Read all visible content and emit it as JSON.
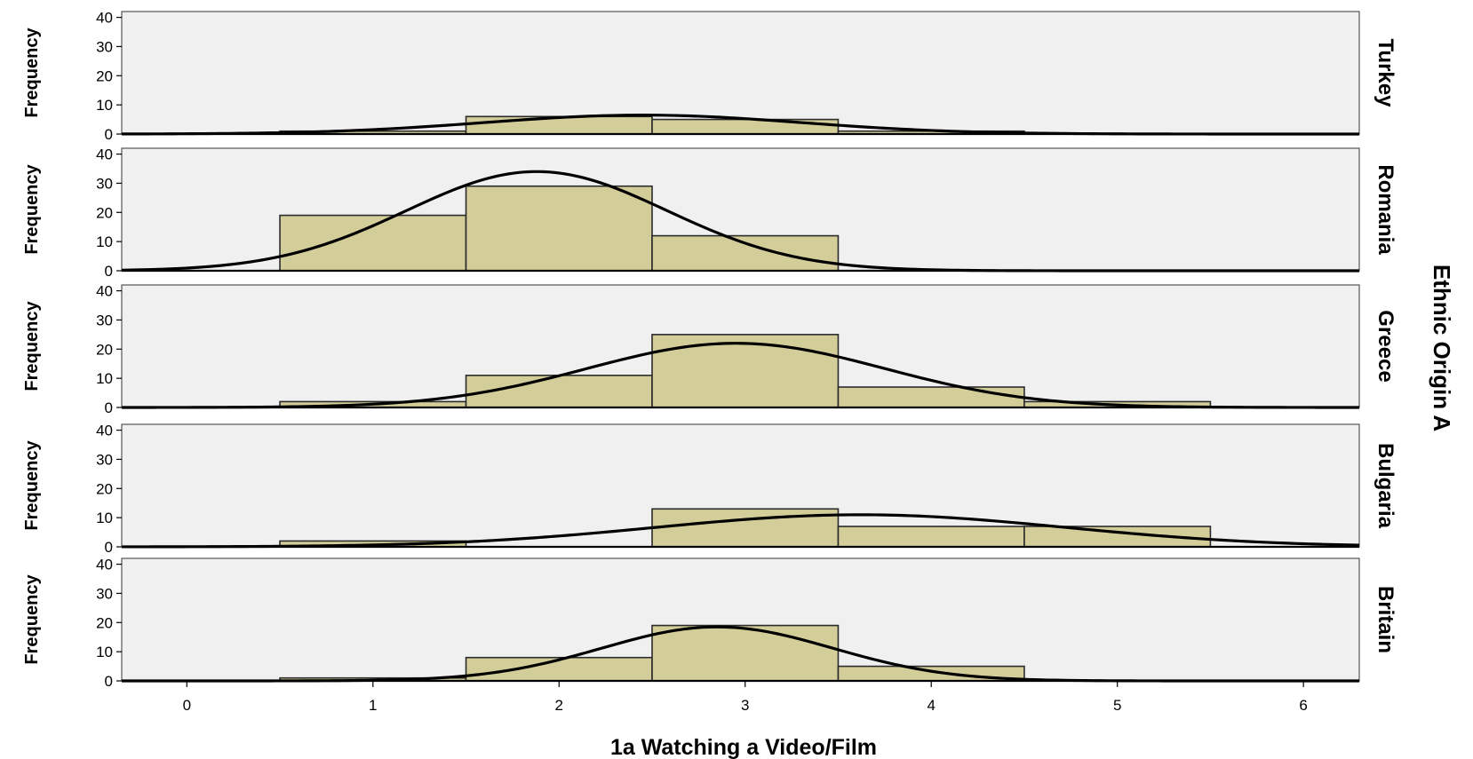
{
  "chart_data": {
    "type": "bar",
    "subtype": "paneled-histogram-with-normal-curve",
    "xlabel": "1a Watching a Video/Film",
    "ylabel": "Frequency",
    "facet_title": "Ethnic Origin A",
    "xlim": [
      -0.35,
      6.3
    ],
    "xticks": [
      0,
      1,
      2,
      3,
      4,
      5,
      6
    ],
    "ylim": [
      0,
      42
    ],
    "yticks": [
      0,
      10,
      20,
      30,
      40
    ],
    "bin_edges": [
      0.5,
      1.5,
      2.5,
      3.5,
      4.5,
      5.5
    ],
    "bar_color": "#d3cd99",
    "panel_background": "#f0f0f0",
    "curve_color": "#000000",
    "panels": [
      {
        "name": "Turkey",
        "values": [
          1,
          6,
          5,
          1,
          0
        ],
        "curve_mean": 2.45,
        "curve_sd": 0.85,
        "curve_peak": 6.5
      },
      {
        "name": "Romania",
        "values": [
          19,
          29,
          12,
          0,
          0
        ],
        "curve_mean": 1.88,
        "curve_sd": 0.7,
        "curve_peak": 34
      },
      {
        "name": "Greece",
        "values": [
          2,
          11,
          25,
          7,
          2
        ],
        "curve_mean": 2.95,
        "curve_sd": 0.8,
        "curve_peak": 22
      },
      {
        "name": "Bulgaria",
        "values": [
          2,
          0,
          13,
          7,
          7
        ],
        "curve_mean": 3.62,
        "curve_sd": 1.1,
        "curve_peak": 11
      },
      {
        "name": "Britain",
        "values": [
          1,
          8,
          19,
          5,
          0
        ],
        "curve_mean": 2.85,
        "curve_sd": 0.62,
        "curve_peak": 18.5
      }
    ]
  }
}
